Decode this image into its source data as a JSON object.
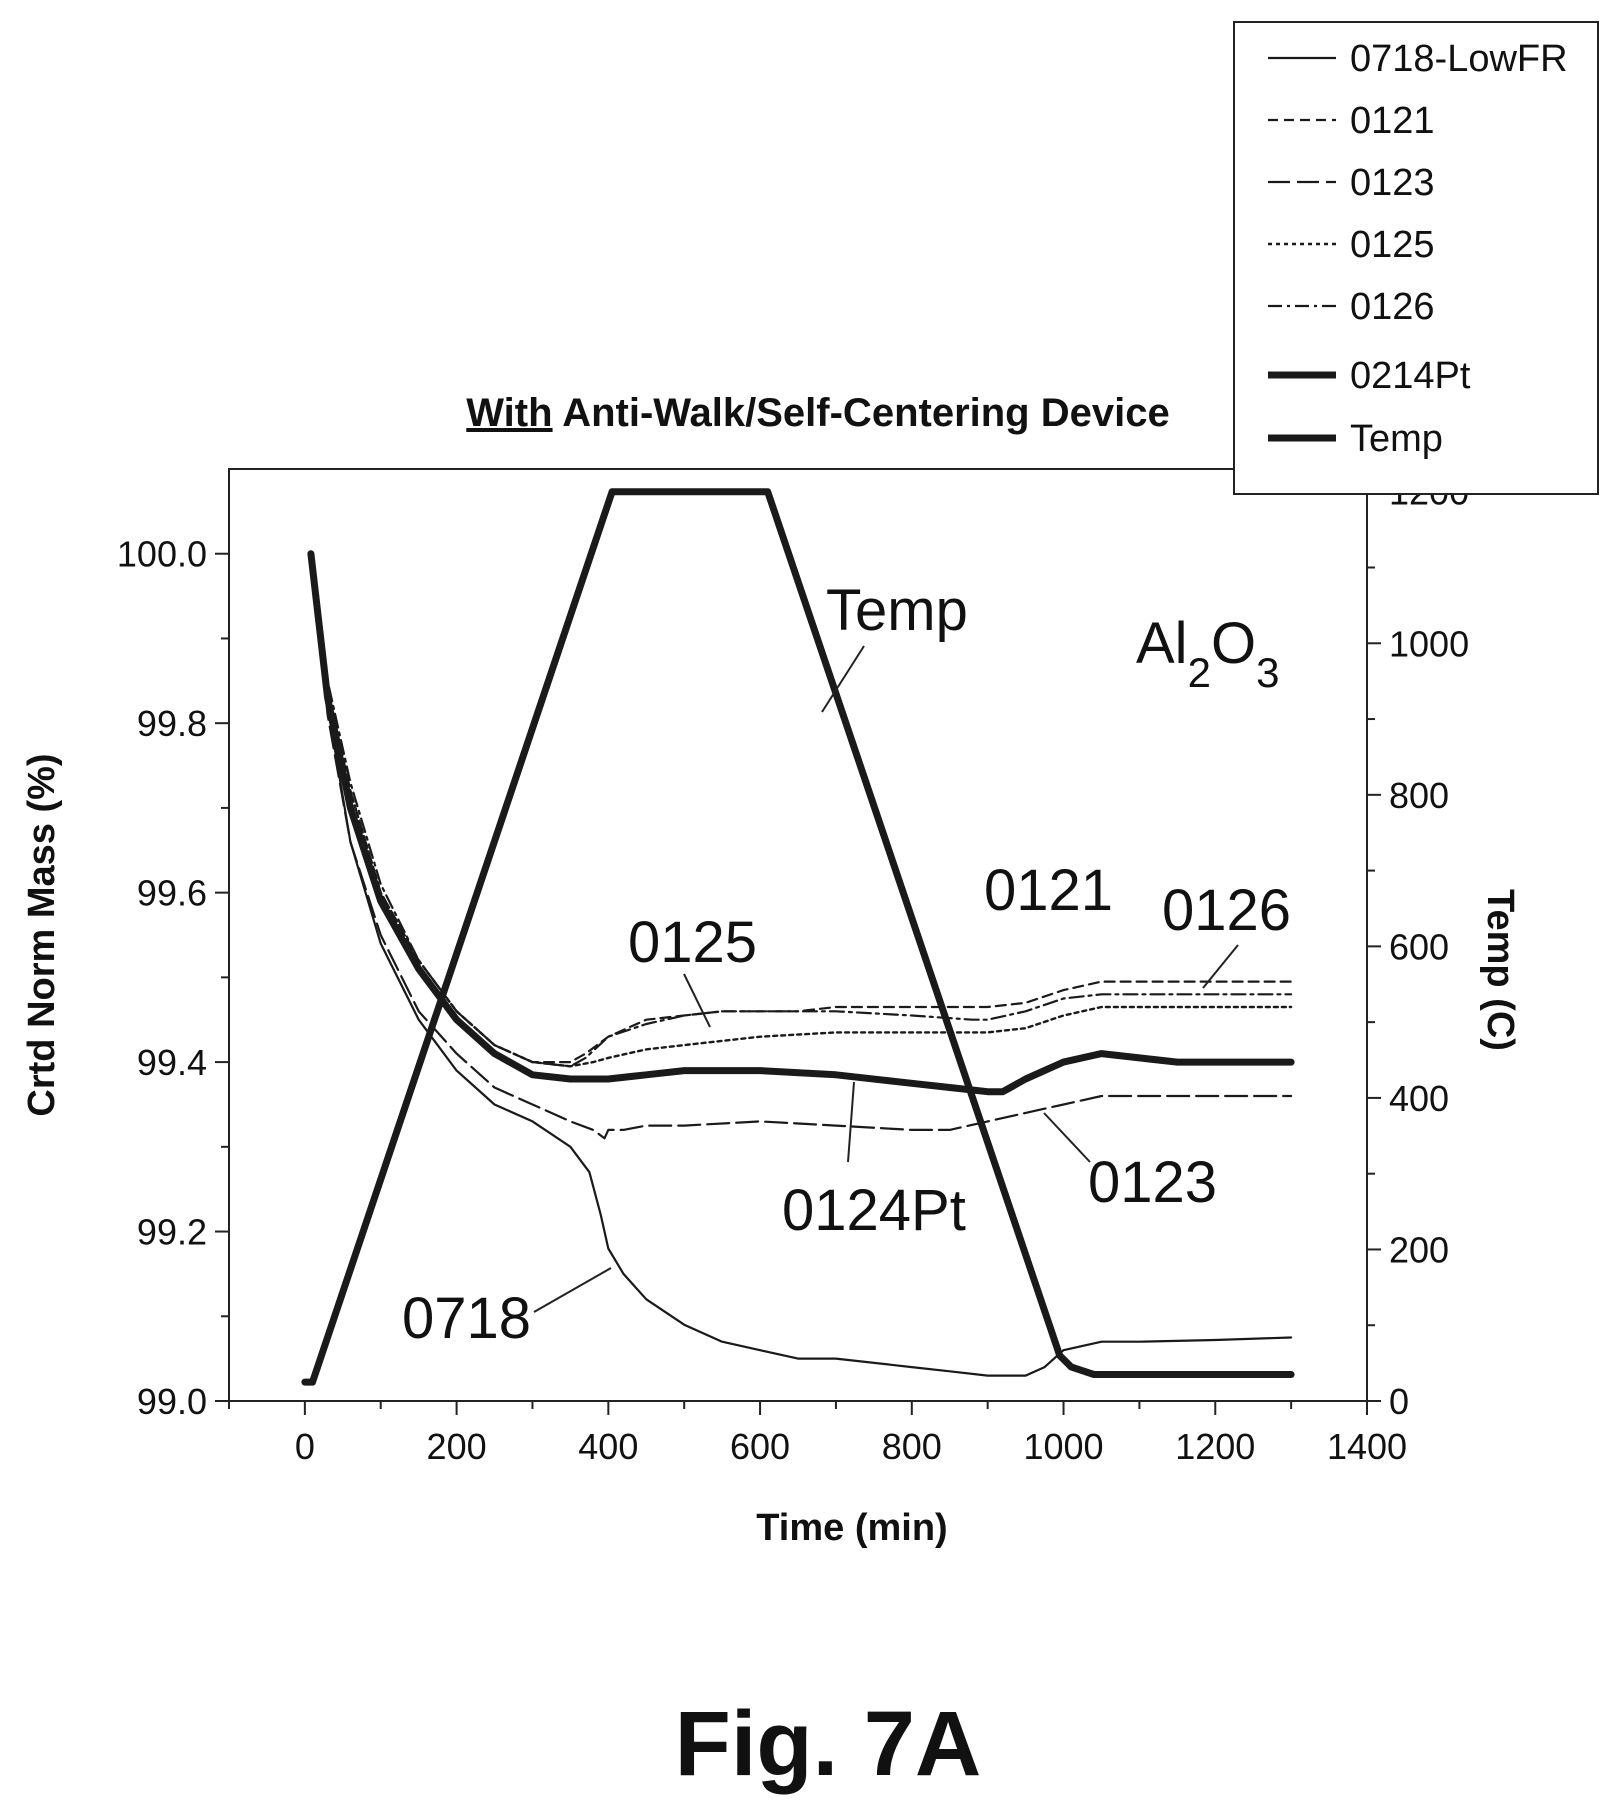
{
  "figure_label": "Fig. 7A",
  "chart_data": {
    "type": "line",
    "title_prefix": "With",
    "title_rest": " Anti-Walk/Self-Centering Device",
    "xlabel": "Time (min)",
    "ylabel": "Crtd Norm Mass (%)",
    "y2label": "Temp (C)",
    "xlim": [
      -100,
      1400
    ],
    "ylim": [
      99.0,
      100.1
    ],
    "y2lim": [
      0,
      1230
    ],
    "xticks": [
      "0",
      "200",
      "400",
      "600",
      "800",
      "1000",
      "1200",
      "1400"
    ],
    "yticks": [
      "99.0",
      "99.2",
      "99.4",
      "99.6",
      "99.8",
      "100.0"
    ],
    "y2ticks": [
      "0",
      "200",
      "400",
      "600",
      "800",
      "1000",
      "1200"
    ],
    "material": "Al",
    "material_sub1": "2",
    "material_mid": "O",
    "material_sub2": "3",
    "legend_position": "top-right",
    "legend": [
      {
        "label": "0718-LowFR",
        "style": "solid"
      },
      {
        "label": "0121",
        "style": "dash"
      },
      {
        "label": "0123",
        "style": "longdash"
      },
      {
        "label": "0125",
        "style": "dot"
      },
      {
        "label": "0126",
        "style": "dashdot"
      },
      {
        "label": "0214Pt",
        "style": "thick"
      },
      {
        "label": "Temp",
        "style": "thick"
      }
    ],
    "annotations": [
      "Temp",
      "0121",
      "0126",
      "0125",
      "0124Pt",
      "0123",
      "0718"
    ],
    "series": [
      {
        "name": "0718-LowFR",
        "axis": "left",
        "style": "solid",
        "x": [
          8,
          30,
          60,
          100,
          150,
          200,
          250,
          300,
          350,
          375,
          390,
          400,
          420,
          450,
          500,
          550,
          600,
          650,
          700,
          800,
          850,
          900,
          950,
          975,
          1000,
          1050,
          1100,
          1200,
          1300
        ],
        "y": [
          100.0,
          99.82,
          99.66,
          99.54,
          99.45,
          99.39,
          99.35,
          99.33,
          99.3,
          99.27,
          99.22,
          99.18,
          99.15,
          99.12,
          99.09,
          99.07,
          99.06,
          99.05,
          99.05,
          99.04,
          99.035,
          99.03,
          99.03,
          99.04,
          99.06,
          99.07,
          99.07,
          99.072,
          99.075
        ]
      },
      {
        "name": "0121",
        "axis": "left",
        "style": "dash",
        "x": [
          8,
          30,
          60,
          100,
          150,
          200,
          250,
          300,
          350,
          370,
          400,
          450,
          500,
          550,
          600,
          650,
          700,
          800,
          900,
          950,
          1000,
          1050,
          1100,
          1200,
          1300
        ],
        "y": [
          100.0,
          99.84,
          99.72,
          99.6,
          99.52,
          99.46,
          99.42,
          99.4,
          99.4,
          99.41,
          99.43,
          99.45,
          99.455,
          99.46,
          99.46,
          99.46,
          99.465,
          99.465,
          99.465,
          99.47,
          99.485,
          99.495,
          99.495,
          99.495,
          99.495
        ]
      },
      {
        "name": "0123",
        "axis": "left",
        "style": "longdash",
        "x": [
          8,
          30,
          60,
          100,
          150,
          200,
          250,
          300,
          350,
          380,
          395,
          400,
          420,
          450,
          500,
          600,
          700,
          800,
          850,
          900,
          950,
          1000,
          1050,
          1100,
          1200,
          1300
        ],
        "y": [
          100.0,
          99.81,
          99.66,
          99.55,
          99.46,
          99.41,
          99.37,
          99.35,
          99.33,
          99.32,
          99.31,
          99.32,
          99.32,
          99.325,
          99.325,
          99.33,
          99.325,
          99.32,
          99.32,
          99.33,
          99.34,
          99.35,
          99.36,
          99.36,
          99.36,
          99.36
        ]
      },
      {
        "name": "0125",
        "axis": "left",
        "style": "dot",
        "x": [
          8,
          30,
          60,
          100,
          150,
          200,
          250,
          300,
          350,
          380,
          400,
          450,
          500,
          550,
          600,
          700,
          800,
          900,
          950,
          1000,
          1050,
          1100,
          1200,
          1300
        ],
        "y": [
          100.0,
          99.84,
          99.72,
          99.6,
          99.52,
          99.46,
          99.42,
          99.4,
          99.395,
          99.4,
          99.405,
          99.415,
          99.42,
          99.425,
          99.43,
          99.435,
          99.435,
          99.435,
          99.44,
          99.455,
          99.465,
          99.465,
          99.465,
          99.465
        ]
      },
      {
        "name": "0126",
        "axis": "left",
        "style": "dashdot",
        "x": [
          8,
          30,
          60,
          100,
          150,
          200,
          250,
          300,
          350,
          370,
          400,
          450,
          500,
          550,
          600,
          700,
          800,
          880,
          900,
          950,
          1000,
          1050,
          1100,
          1200,
          1300
        ],
        "y": [
          100.0,
          99.85,
          99.73,
          99.61,
          99.52,
          99.46,
          99.42,
          99.4,
          99.395,
          99.405,
          99.43,
          99.445,
          99.455,
          99.46,
          99.46,
          99.46,
          99.455,
          99.45,
          99.45,
          99.46,
          99.475,
          99.48,
          99.48,
          99.48,
          99.48
        ]
      },
      {
        "name": "0214Pt",
        "axis": "left",
        "style": "thick",
        "x": [
          8,
          30,
          60,
          100,
          150,
          200,
          250,
          300,
          350,
          380,
          400,
          450,
          500,
          550,
          600,
          700,
          800,
          850,
          900,
          920,
          930,
          950,
          1000,
          1050,
          1100,
          1150,
          1200,
          1300
        ],
        "y": [
          100.0,
          99.83,
          99.7,
          99.59,
          99.51,
          99.45,
          99.41,
          99.385,
          99.38,
          99.38,
          99.38,
          99.385,
          99.39,
          99.39,
          99.39,
          99.385,
          99.375,
          99.37,
          99.365,
          99.365,
          99.37,
          99.38,
          99.4,
          99.41,
          99.405,
          99.4,
          99.4,
          99.4
        ]
      },
      {
        "name": "Temp",
        "axis": "right",
        "style": "thick",
        "x": [
          0,
          10,
          405,
          610,
          995,
          1010,
          1040,
          1100,
          1300
        ],
        "y": [
          25,
          25,
          1200,
          1200,
          60,
          45,
          35,
          35,
          35
        ]
      }
    ]
  }
}
